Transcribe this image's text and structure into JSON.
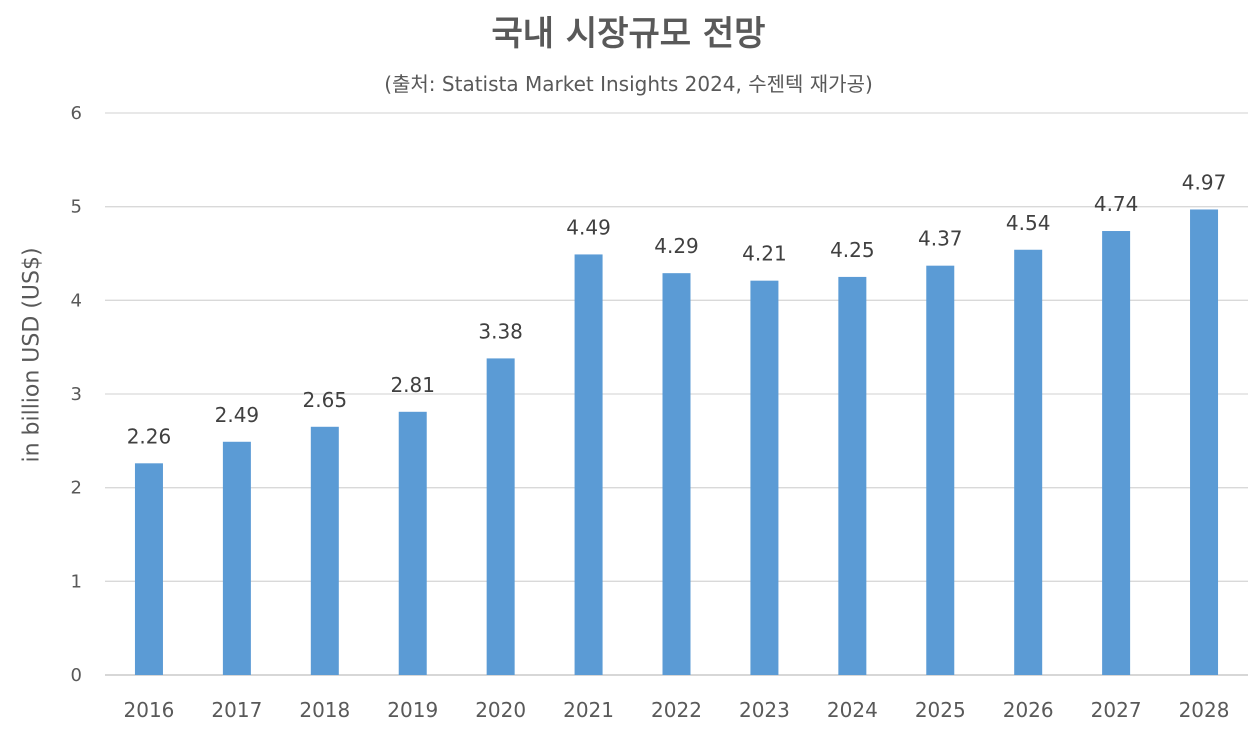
{
  "chart_data": {
    "type": "bar",
    "title": "국내 시장규모 전망",
    "subtitle": "(출처: Statista Market Insights 2024, 수젠텍 재가공)",
    "xlabel": "",
    "ylabel": "in billion USD (US$)",
    "categories": [
      "2016",
      "2017",
      "2018",
      "2019",
      "2020",
      "2021",
      "2022",
      "2023",
      "2024",
      "2025",
      "2026",
      "2027",
      "2028"
    ],
    "values": [
      2.26,
      2.49,
      2.65,
      2.81,
      3.38,
      4.49,
      4.29,
      4.21,
      4.25,
      4.37,
      4.54,
      4.74,
      4.97
    ],
    "data_labels": [
      "2.26",
      "2.49",
      "2.65",
      "2.81",
      "3.38",
      "4.49",
      "4.29",
      "4.21",
      "4.25",
      "4.37",
      "4.54",
      "4.74",
      "4.97"
    ],
    "ylim": [
      0,
      6
    ],
    "yticks": [
      "0",
      "1",
      "2",
      "3",
      "4",
      "5",
      "6"
    ],
    "grid": true,
    "legend": "none",
    "bar_color": "#5B9BD5",
    "grid_color": "#D9D9D9"
  }
}
